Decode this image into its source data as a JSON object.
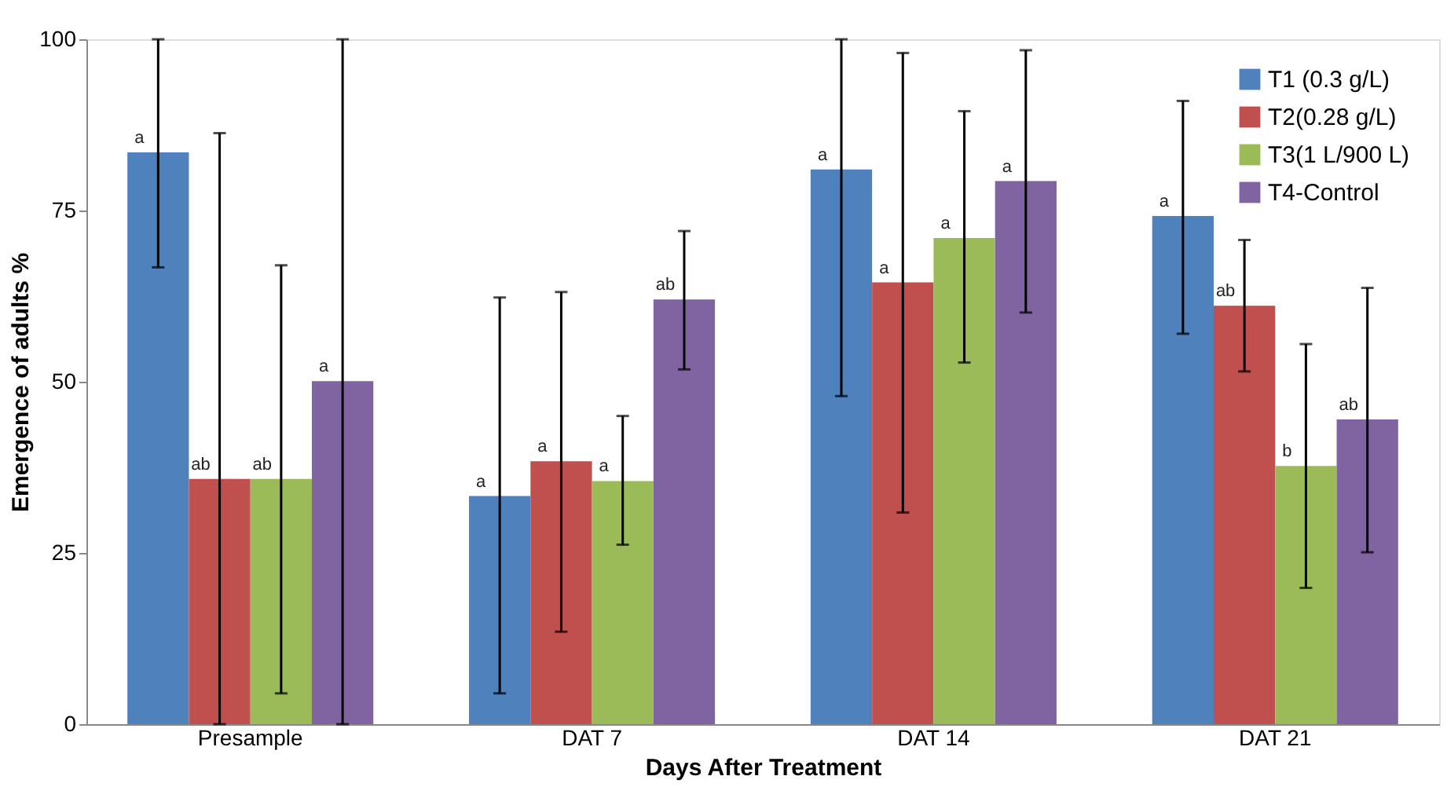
{
  "chart_data": {
    "type": "bar",
    "xlabel": "Days After Treatment",
    "ylabel": "Emergence of adults %",
    "categories": [
      "Presample",
      "DAT 7",
      "DAT 14",
      "DAT 21"
    ],
    "series": [
      {
        "name": "T1 (0.3 g/L)",
        "color": "#4f81bd",
        "values": [
          83.5,
          33.3,
          81.0,
          74.2
        ],
        "errors": [
          [
            66.7,
            100
          ],
          [
            4.5,
            62.3
          ],
          [
            47.9,
            100
          ],
          [
            57.0,
            91.0
          ]
        ]
      },
      {
        "name": "T2(0.28 g/L)",
        "color": "#c0504d",
        "values": [
          35.8,
          38.4,
          64.5,
          61.1
        ],
        "errors": [
          [
            0,
            86.3
          ],
          [
            13.5,
            63.1
          ],
          [
            30.9,
            98.0
          ],
          [
            51.5,
            70.7
          ]
        ]
      },
      {
        "name": "T3(1 L/900 L)",
        "color": "#9bbb59",
        "values": [
          35.8,
          35.5,
          71.0,
          37.7
        ],
        "errors": [
          [
            4.5,
            67.0
          ],
          [
            26.2,
            45.0
          ],
          [
            52.8,
            89.5
          ],
          [
            19.9,
            55.5
          ]
        ]
      },
      {
        "name": "T4-Control",
        "color": "#8064a2",
        "values": [
          50.1,
          62.0,
          79.3,
          44.5
        ],
        "errors": [
          [
            0,
            100
          ],
          [
            51.8,
            72.0
          ],
          [
            60.1,
            98.4
          ],
          [
            25.1,
            63.7
          ]
        ]
      }
    ],
    "annotations": [
      "a",
      "ab",
      "ab",
      "a",
      "a",
      "a",
      "a",
      "ab",
      "a",
      "a",
      "a",
      "a",
      "a",
      "ab",
      "b",
      "ab"
    ],
    "ylim": [
      0,
      100
    ],
    "yticks": [
      0,
      25,
      50,
      75,
      100
    ],
    "grid": false,
    "legend": "top right"
  }
}
